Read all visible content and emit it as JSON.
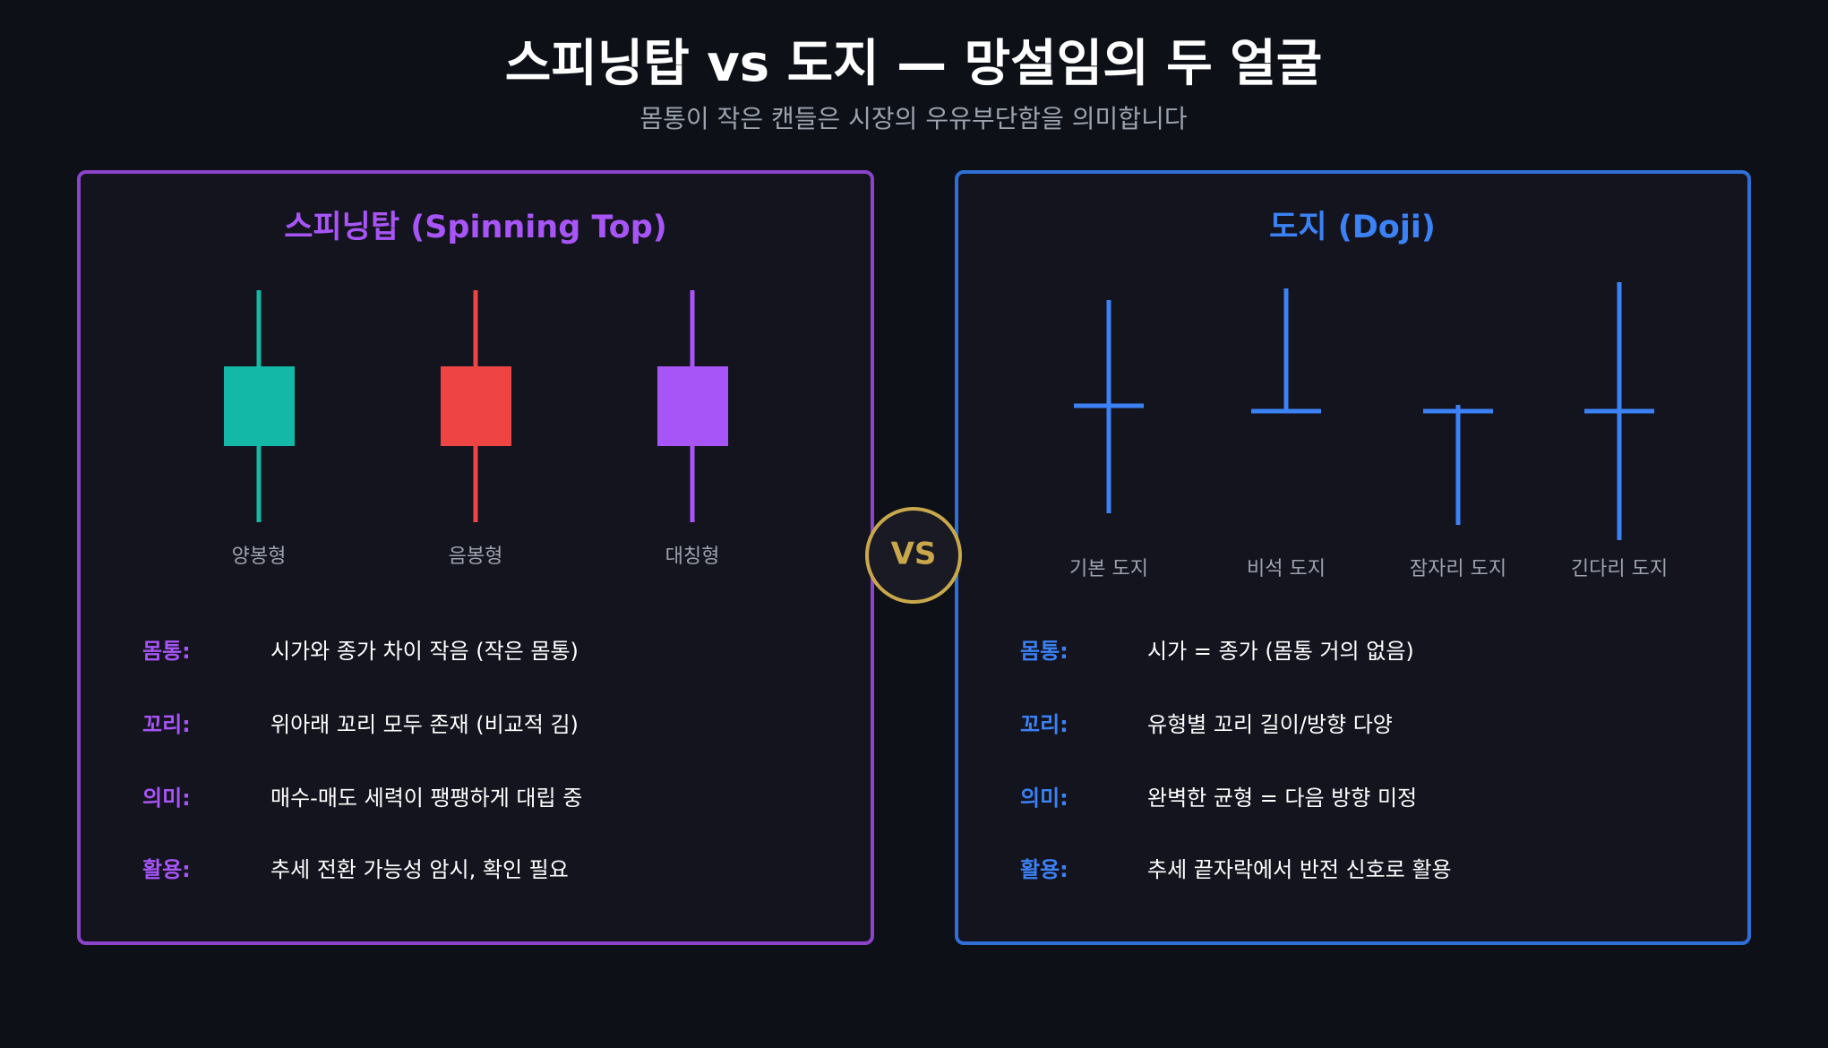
{
  "header": {
    "title": "스피닝탑 vs 도지 — 망설임의 두 얼굴",
    "subtitle": "몸통이 작은 캔들은 시장의 우유부단함을 의미합니다"
  },
  "vs": "VS",
  "panels": [
    {
      "title": "스피닝탑 (Spinning Top)",
      "items": [
        "양봉형",
        "음봉형",
        "대칭형"
      ],
      "rows": [
        {
          "key": "몸통:",
          "text": "시가와 종가 차이 작음 (작은 몸통)"
        },
        {
          "key": "꼬리:",
          "text": "위아래 꼬리 모두 존재 (비교적 김)"
        },
        {
          "key": "의미:",
          "text": "매수-매도 세력이 팽팽하게 대립 중"
        },
        {
          "key": "활용:",
          "text": "추세 전환 가능성 암시, 확인 필요"
        }
      ]
    },
    {
      "title": "도지 (Doji)",
      "items": [
        "기본 도지",
        "비석 도지",
        "잠자리 도지",
        "긴다리 도지"
      ],
      "rows": [
        {
          "key": "몸통:",
          "text": "시가 = 종가 (몸통 거의 없음)"
        },
        {
          "key": "꼬리:",
          "text": "유형별 꼬리 길이/방향 다양"
        },
        {
          "key": "의미:",
          "text": "완벽한 균형 = 다음 방향 미정"
        },
        {
          "key": "활용:",
          "text": "추세 끝자락에서 반전 신호로 활용"
        }
      ]
    }
  ]
}
